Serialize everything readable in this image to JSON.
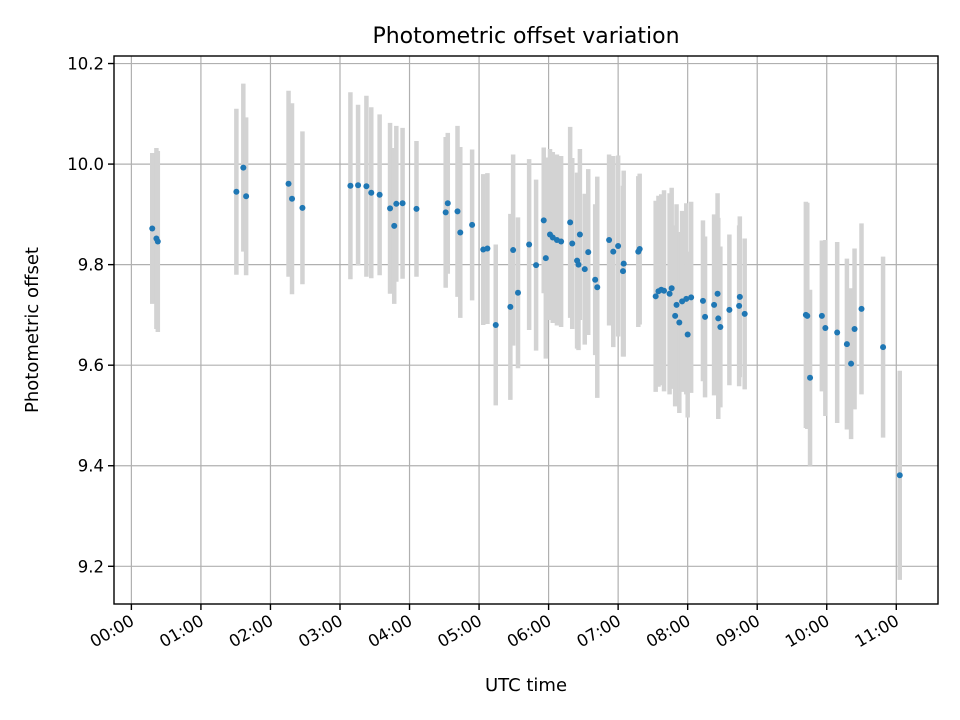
{
  "chart_data": {
    "type": "scatter",
    "title": "Photometric offset variation",
    "xlabel": "UTC time",
    "ylabel": "Photometric offset",
    "x_unit": "hours",
    "xlim": [
      -0.25,
      11.6
    ],
    "ylim": [
      9.125,
      10.215
    ],
    "grid": true,
    "colors": {
      "points": "#1f77b4",
      "errorbars": "#d3d3d3"
    },
    "x_ticks": [
      {
        "value": 0,
        "label": "00:00"
      },
      {
        "value": 1,
        "label": "01:00"
      },
      {
        "value": 2,
        "label": "02:00"
      },
      {
        "value": 3,
        "label": "03:00"
      },
      {
        "value": 4,
        "label": "04:00"
      },
      {
        "value": 5,
        "label": "05:00"
      },
      {
        "value": 6,
        "label": "06:00"
      },
      {
        "value": 7,
        "label": "07:00"
      },
      {
        "value": 8,
        "label": "08:00"
      },
      {
        "value": 9,
        "label": "09:00"
      },
      {
        "value": 10,
        "label": "10:00"
      },
      {
        "value": 11,
        "label": "11:00"
      }
    ],
    "y_ticks": [
      {
        "value": 9.2,
        "label": "9.2"
      },
      {
        "value": 9.4,
        "label": "9.4"
      },
      {
        "value": 9.6,
        "label": "9.6"
      },
      {
        "value": 9.8,
        "label": "9.8"
      },
      {
        "value": 10.0,
        "label": "10.0"
      },
      {
        "value": 10.2,
        "label": "10.2"
      }
    ],
    "points": [
      [
        0.3,
        9.872,
        0.15
      ],
      [
        0.36,
        9.852,
        0.18
      ],
      [
        0.38,
        9.846,
        0.18
      ],
      [
        1.51,
        9.945,
        0.165
      ],
      [
        1.61,
        9.993,
        0.167
      ],
      [
        1.65,
        9.936,
        0.157
      ],
      [
        2.26,
        9.961,
        0.185
      ],
      [
        2.31,
        9.931,
        0.19
      ],
      [
        2.46,
        9.913,
        0.152
      ],
      [
        3.15,
        9.957,
        0.186
      ],
      [
        3.26,
        9.958,
        0.16
      ],
      [
        3.38,
        9.956,
        0.18
      ],
      [
        3.45,
        9.943,
        0.17
      ],
      [
        3.57,
        9.939,
        0.16
      ],
      [
        3.72,
        9.912,
        0.17
      ],
      [
        3.78,
        9.877,
        0.155
      ],
      [
        3.81,
        9.921,
        0.155
      ],
      [
        3.9,
        9.922,
        0.15
      ],
      [
        4.1,
        9.911,
        0.135
      ],
      [
        4.52,
        9.904,
        0.15
      ],
      [
        4.55,
        9.922,
        0.14
      ],
      [
        4.69,
        9.906,
        0.17
      ],
      [
        4.73,
        9.864,
        0.17
      ],
      [
        4.9,
        9.879,
        0.15
      ],
      [
        5.06,
        9.83,
        0.15
      ],
      [
        5.12,
        9.832,
        0.15
      ],
      [
        5.24,
        9.68,
        0.16
      ],
      [
        5.45,
        9.716,
        0.185
      ],
      [
        5.49,
        9.829,
        0.19
      ],
      [
        5.56,
        9.744,
        0.15
      ],
      [
        5.72,
        9.84,
        0.17
      ],
      [
        5.82,
        9.799,
        0.17
      ],
      [
        5.93,
        9.888,
        0.145
      ],
      [
        5.96,
        9.813,
        0.2
      ],
      [
        6.02,
        9.86,
        0.17
      ],
      [
        6.06,
        9.854,
        0.17
      ],
      [
        6.12,
        9.849,
        0.17
      ],
      [
        6.18,
        9.846,
        0.17
      ],
      [
        6.31,
        9.884,
        0.19
      ],
      [
        6.34,
        9.842,
        0.17
      ],
      [
        6.41,
        9.808,
        0.175
      ],
      [
        6.43,
        9.8,
        0.17
      ],
      [
        6.45,
        9.86,
        0.17
      ],
      [
        6.52,
        9.791,
        0.15
      ],
      [
        6.57,
        9.825,
        0.165
      ],
      [
        6.67,
        9.77,
        0.15
      ],
      [
        6.7,
        9.755,
        0.22
      ],
      [
        6.87,
        9.849,
        0.17
      ],
      [
        6.93,
        9.826,
        0.19
      ],
      [
        7.0,
        9.837,
        0.18
      ],
      [
        7.07,
        9.787,
        0.17
      ],
      [
        7.08,
        9.802,
        0.185
      ],
      [
        7.29,
        9.826,
        0.15
      ],
      [
        7.31,
        9.831,
        0.15
      ],
      [
        7.54,
        9.737,
        0.19
      ],
      [
        7.58,
        9.747,
        0.19
      ],
      [
        7.62,
        9.75,
        0.19
      ],
      [
        7.66,
        9.748,
        0.2
      ],
      [
        7.74,
        9.742,
        0.2
      ],
      [
        7.77,
        9.753,
        0.2
      ],
      [
        7.82,
        9.698,
        0.18
      ],
      [
        7.84,
        9.72,
        0.2
      ],
      [
        7.88,
        9.685,
        0.18
      ],
      [
        7.92,
        9.727,
        0.18
      ],
      [
        7.98,
        9.732,
        0.19
      ],
      [
        8.0,
        9.661,
        0.165
      ],
      [
        8.05,
        9.735,
        0.19
      ],
      [
        8.22,
        9.728,
        0.16
      ],
      [
        8.25,
        9.696,
        0.16
      ],
      [
        8.38,
        9.72,
        0.18
      ],
      [
        8.43,
        9.742,
        0.2
      ],
      [
        8.44,
        9.693,
        0.2
      ],
      [
        8.47,
        9.676,
        0.16
      ],
      [
        8.6,
        9.71,
        0.15
      ],
      [
        8.74,
        9.718,
        0.16
      ],
      [
        8.75,
        9.736,
        0.16
      ],
      [
        8.82,
        9.702,
        0.15
      ],
      [
        9.7,
        9.7,
        0.225
      ],
      [
        9.72,
        9.698,
        0.225
      ],
      [
        9.76,
        9.575,
        0.175
      ],
      [
        9.93,
        9.698,
        0.15
      ],
      [
        9.98,
        9.674,
        0.175
      ],
      [
        10.15,
        9.665,
        0.18
      ],
      [
        10.29,
        9.642,
        0.17
      ],
      [
        10.35,
        9.603,
        0.15
      ],
      [
        10.4,
        9.672,
        0.16
      ],
      [
        10.5,
        9.712,
        0.17
      ],
      [
        10.81,
        9.636,
        0.18
      ],
      [
        11.05,
        9.381,
        0.208
      ]
    ]
  }
}
